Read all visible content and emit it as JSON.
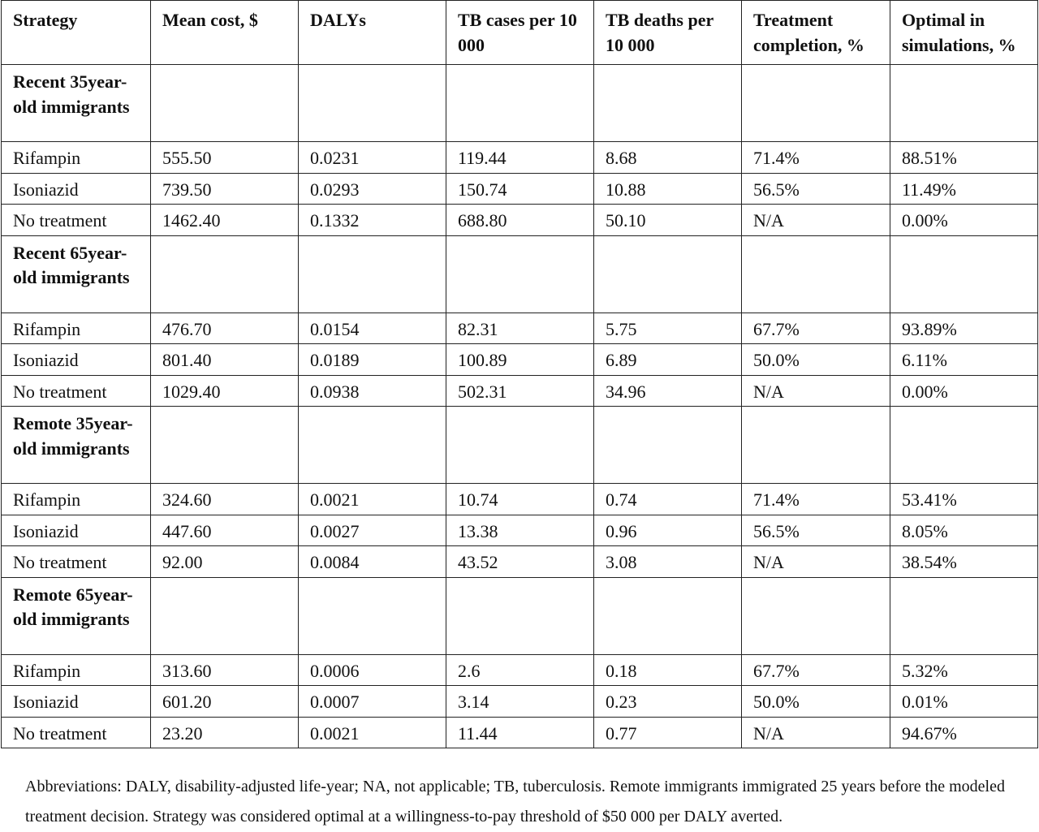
{
  "table": {
    "headers": [
      "Strategy",
      "Mean cost, $",
      "DALYs",
      "TB cases per 10 000",
      "TB deaths per 10 000",
      "Treatment completion, %",
      "Optimal in simulations, %"
    ],
    "groups": [
      {
        "label": "Recent 35year-old immigrants",
        "rows": [
          [
            "Rifampin",
            "555.50",
            "0.0231",
            "119.44",
            "8.68",
            "71.4%",
            "88.51%"
          ],
          [
            "Isoniazid",
            "739.50",
            "0.0293",
            "150.74",
            "10.88",
            "56.5%",
            "11.49%"
          ],
          [
            "No treatment",
            "1462.40",
            "0.1332",
            "688.80",
            "50.10",
            "N/A",
            "0.00%"
          ]
        ]
      },
      {
        "label": "Recent 65year-old immigrants",
        "rows": [
          [
            "Rifampin",
            "476.70",
            "0.0154",
            "82.31",
            "5.75",
            "67.7%",
            "93.89%"
          ],
          [
            "Isoniazid",
            "801.40",
            "0.0189",
            "100.89",
            "6.89",
            "50.0%",
            "6.11%"
          ],
          [
            "No treatment",
            "1029.40",
            "0.0938",
            "502.31",
            "34.96",
            "N/A",
            "0.00%"
          ]
        ]
      },
      {
        "label": "Remote 35year-old immigrants",
        "rows": [
          [
            "Rifampin",
            "324.60",
            "0.0021",
            "10.74",
            "0.74",
            "71.4%",
            "53.41%"
          ],
          [
            "Isoniazid",
            "447.60",
            "0.0027",
            "13.38",
            "0.96",
            "56.5%",
            "8.05%"
          ],
          [
            "No treatment",
            "92.00",
            "0.0084",
            "43.52",
            "3.08",
            "N/A",
            "38.54%"
          ]
        ]
      },
      {
        "label": "Remote 65year-old immigrants",
        "rows": [
          [
            "Rifampin",
            "313.60",
            "0.0006",
            "2.6",
            "0.18",
            "67.7%",
            "5.32%"
          ],
          [
            "Isoniazid",
            "601.20",
            "0.0007",
            "3.14",
            "0.23",
            "50.0%",
            "0.01%"
          ],
          [
            "No treatment",
            "23.20",
            "0.0021",
            "11.44",
            "0.77",
            "N/A",
            "94.67%"
          ]
        ]
      }
    ]
  },
  "footnote": "Abbreviations: DALY, disability-adjusted life-year; NA, not applicable; TB, tuberculosis. Remote immigrants immigrated 25 years before the modeled treatment decision. Strategy was considered optimal at a willingness-to-pay threshold of $50 000 per DALY averted."
}
